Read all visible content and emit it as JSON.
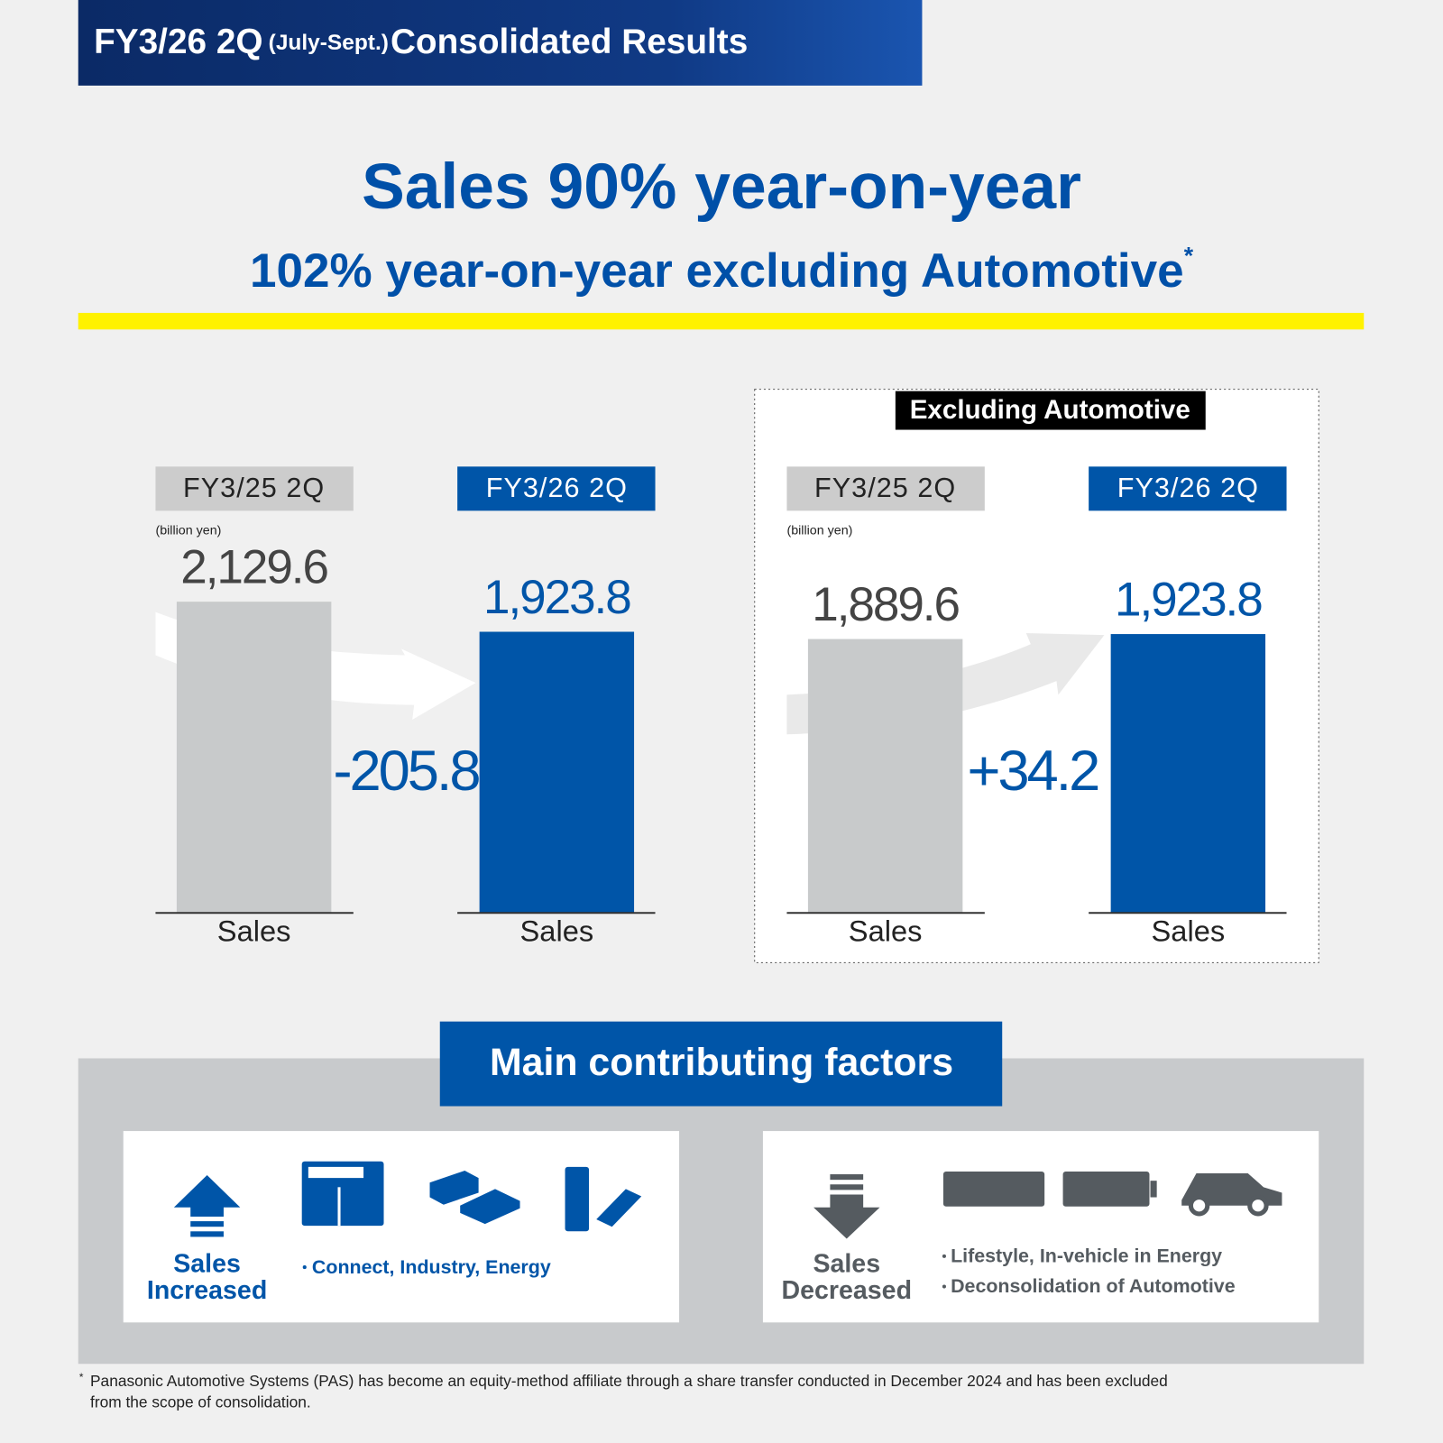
{
  "header": {
    "title_main": "FY3/26 2Q",
    "title_period": "(July-Sept.)",
    "title_rest": "Consolidated Results"
  },
  "headline": {
    "line1": "Sales 90% year-on-year",
    "line2": "102% year-on-year excluding Automotive",
    "asterisk": "*"
  },
  "charts": [
    {
      "type": "bar",
      "categories": [
        "FY3/25 2Q",
        "FY3/26 2Q"
      ],
      "unit": "(billion yen)",
      "values": [
        2129.6,
        1923.8
      ],
      "value_labels": [
        "2,129.6",
        "1,923.8"
      ],
      "axis_labels": [
        "Sales",
        "Sales"
      ],
      "change": "-205.8",
      "colors": [
        "#c8cacb",
        "#0055a8"
      ]
    },
    {
      "type": "bar",
      "title": "Excluding Automotive",
      "categories": [
        "FY3/25 2Q",
        "FY3/26 2Q"
      ],
      "unit": "(billion yen)",
      "values": [
        1889.6,
        1923.8
      ],
      "value_labels": [
        "1,889.6",
        "1,923.8"
      ],
      "axis_labels": [
        "Sales",
        "Sales"
      ],
      "change": "+34.2",
      "colors": [
        "#c8cacb",
        "#0055a8"
      ]
    }
  ],
  "factors": {
    "title": "Main contributing factors",
    "increased": {
      "label_line1": "Sales",
      "label_line2": "Increased",
      "items": [
        "Connect, Industry, Energy"
      ]
    },
    "decreased": {
      "label_line1": "Sales",
      "label_line2": "Decreased",
      "items": [
        "Lifestyle, In-vehicle in Energy",
        "Deconsolidation of Automotive"
      ]
    }
  },
  "footnote": {
    "marker": "*",
    "lines": [
      "Panasonic Automotive Systems (PAS) has become an equity-method affiliate through a share transfer conducted in December 2024 and has been excluded",
      "from the scope of consolidation."
    ]
  }
}
